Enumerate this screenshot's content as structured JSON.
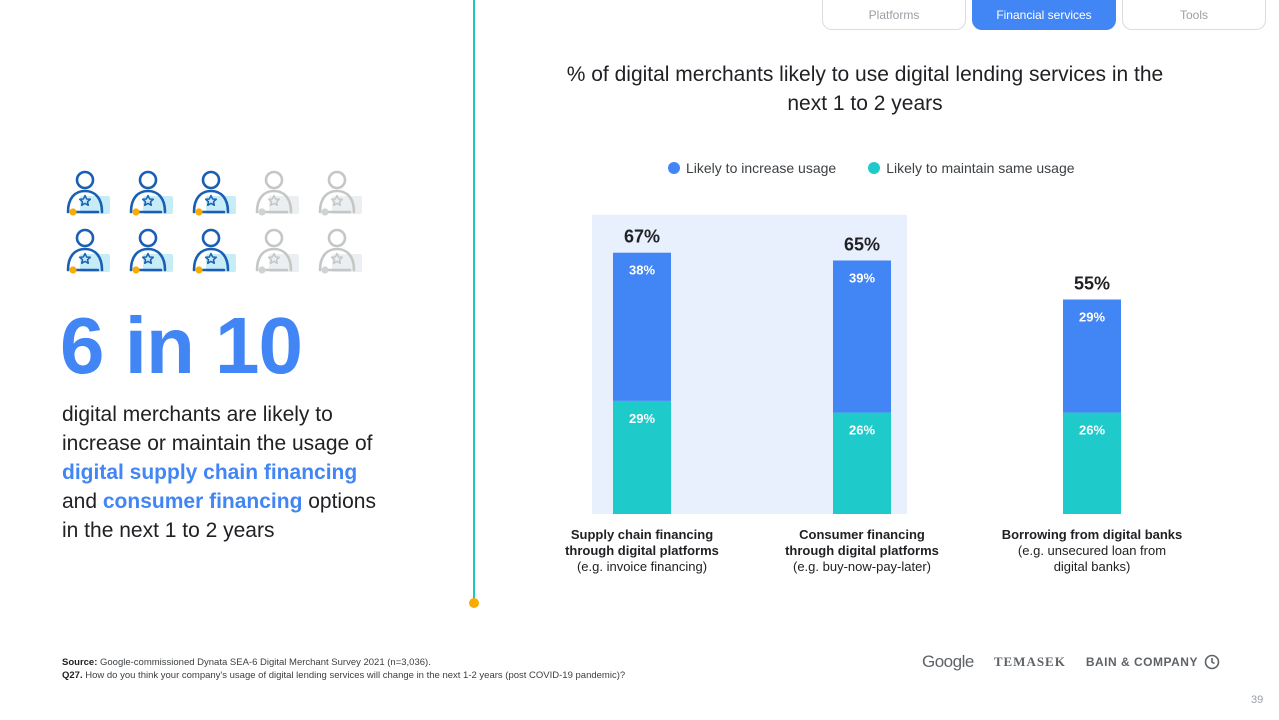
{
  "tabs": [
    {
      "label": "Platforms",
      "active": false
    },
    {
      "label": "Financial services",
      "active": true
    },
    {
      "label": "Tools",
      "active": false
    }
  ],
  "left": {
    "icons_total": 10,
    "icons_highlighted": 6,
    "headline": "6 in 10",
    "desc_1": "digital merchants are likely to increase or maintain the usage of ",
    "desc_hl_1": "digital supply chain financing",
    "desc_2": " and ",
    "desc_hl_2": "consumer financing",
    "desc_3": " options in the next 1 to 2 years"
  },
  "chart_data": {
    "type": "bar",
    "stacked": true,
    "title": "% of digital merchants likely to use digital lending services in the next 1 to 2 years",
    "categories": [
      "Supply chain financing through digital platforms (e.g. invoice financing)",
      "Consumer financing through digital platforms (e.g. buy-now-pay-later)",
      "Borrowing from digital banks (e.g. unsecured loan from digital banks)"
    ],
    "category_lines": [
      [
        "Supply chain financing",
        "through digital platforms",
        "(e.g. invoice financing)"
      ],
      [
        "Consumer financing",
        "through digital platforms",
        "(e.g. buy-now-pay-later)"
      ],
      [
        "Borrowing from digital banks",
        "(e.g. unsecured loan from",
        "digital banks)"
      ]
    ],
    "series": [
      {
        "name": "Likely to maintain same usage",
        "values": [
          29,
          26,
          26
        ],
        "labels": [
          "29%",
          "26%",
          "26%"
        ],
        "color": "#1ecbca"
      },
      {
        "name": "Likely to increase usage",
        "values": [
          38,
          39,
          29
        ],
        "labels": [
          "38%",
          "39%",
          "29%"
        ],
        "color": "#4285f4"
      }
    ],
    "totals": [
      "67%",
      "65%",
      "55%"
    ],
    "highlighted_categories": [
      0,
      1
    ],
    "highlight_color": "#e8f0fe",
    "legend_order": [
      "Likely to increase usage",
      "Likely to maintain same usage"
    ],
    "legend_position": "top",
    "ylim": [
      0,
      70
    ],
    "grid": false
  },
  "footer": {
    "source_label": "Source:",
    "source_text": " Google-commissioned Dynata SEA-6 Digital Merchant Survey 2021 (n=3,036).",
    "q_label": "Q27.",
    "q_text": " How do you think your company's usage of digital lending services will change in the next 1-2 years (post COVID-19 pandemic)?"
  },
  "logos": {
    "google": "Google",
    "temasek": "TEMASEK",
    "bain": "BAIN & COMPANY"
  },
  "page_number": "39",
  "colors": {
    "accent": "#4285f4",
    "teal": "#1ecbca",
    "line": "#1ec6c0",
    "dot": "#f9ab00",
    "inactive": "#c4c7c5"
  }
}
